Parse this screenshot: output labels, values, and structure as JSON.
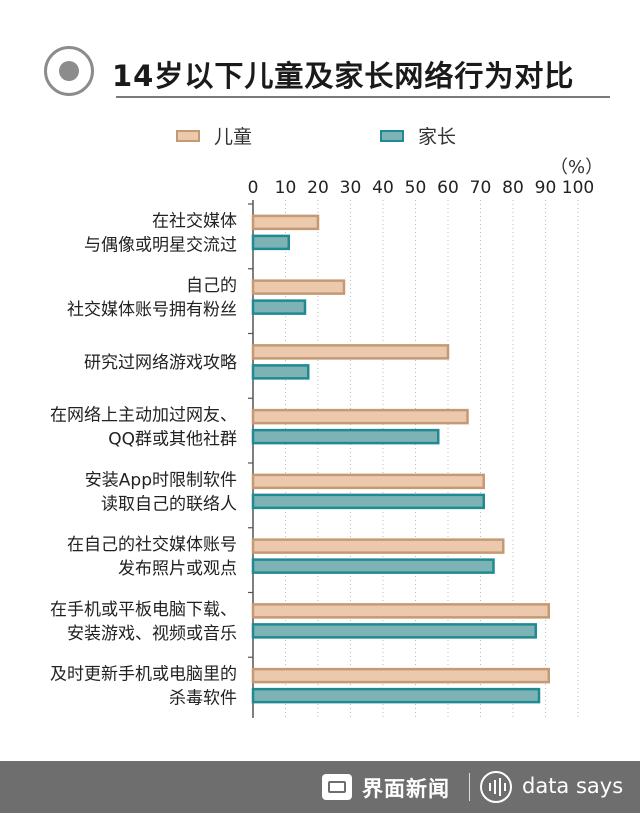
{
  "header": {
    "title": "14岁以下儿童及家长网络行为对比"
  },
  "unit_label": "（%）",
  "footer": {
    "brand": "界面新闻",
    "tagline": "data says"
  },
  "colors": {
    "children_fill": "#ecc8ac",
    "children_stroke": "#c49a74",
    "parents_fill": "#7db3b5",
    "parents_stroke": "#1f8a91",
    "grid": "#bbbbbb",
    "axis": "#555555",
    "footer_bg": "#6e6e6e"
  },
  "chart_data": {
    "type": "bar",
    "orientation": "horizontal",
    "title": "14岁以下儿童及家长网络行为对比",
    "xlim": [
      0,
      100
    ],
    "x_ticks": [
      "0",
      "10",
      "20",
      "30",
      "40",
      "50",
      "60",
      "70",
      "80",
      "90",
      "100"
    ],
    "x_unit": "（%）",
    "grid": "vertical dotted",
    "legend_position": "top",
    "categories": [
      [
        "在社交媒体",
        "与偶像或明星交流过"
      ],
      [
        "自己的",
        "社交媒体账号拥有粉丝"
      ],
      [
        "研究过网络游戏攻略"
      ],
      [
        "在网络上主动加过网友、",
        "QQ群或其他社群"
      ],
      [
        "安装App时限制软件",
        "读取自己的联络人"
      ],
      [
        "在自己的社交媒体账号",
        "发布照片或观点"
      ],
      [
        "在手机或平板电脑下载、",
        "安装游戏、视频或音乐"
      ],
      [
        "及时更新手机或电脑里的",
        "杀毒软件"
      ]
    ],
    "series": [
      {
        "name": "儿童",
        "values": [
          20,
          28,
          60,
          66,
          71,
          77,
          91,
          91
        ]
      },
      {
        "name": "家长",
        "values": [
          11,
          16,
          17,
          57,
          71,
          74,
          87,
          88
        ]
      }
    ]
  }
}
